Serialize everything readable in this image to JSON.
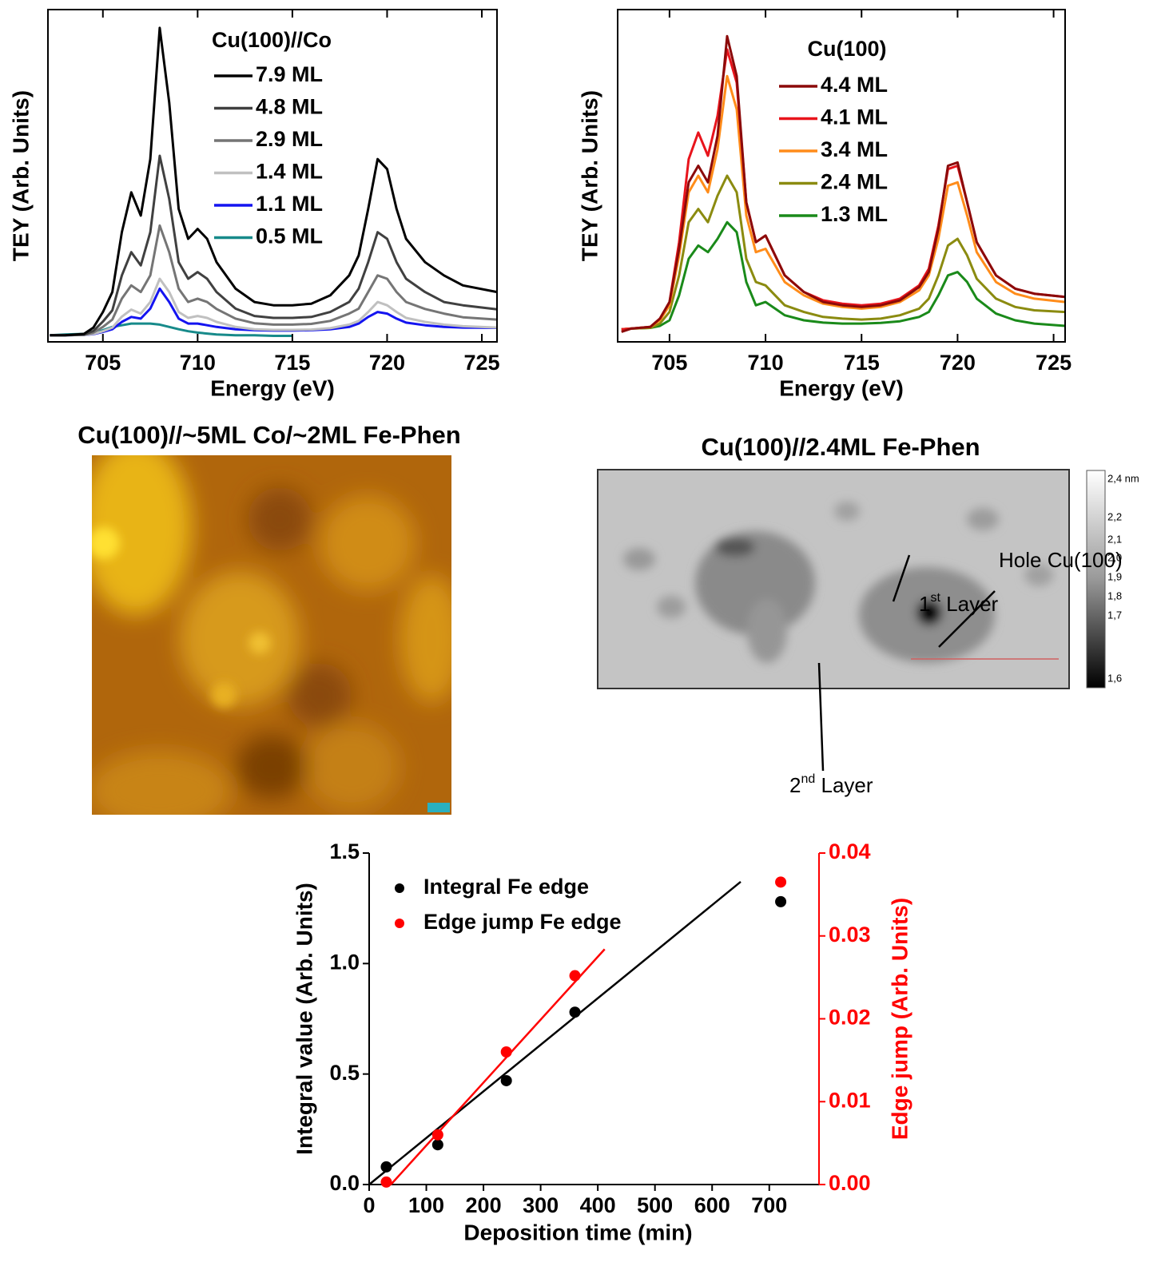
{
  "chart_data": [
    {
      "type": "line",
      "legend_title": "Cu(100)//Co",
      "xlabel": "Energy (eV)",
      "ylabel": "TEY (Arb. Units)",
      "xlim": [
        702.1,
        725.8
      ],
      "ylim": [
        0,
        1
      ],
      "xticks": [
        705,
        710,
        715,
        720,
        725
      ],
      "x": [
        702.2,
        703,
        704,
        704.5,
        705,
        705.5,
        706,
        706.5,
        707,
        707.5,
        708,
        708.5,
        709,
        709.5,
        710,
        710.5,
        711,
        712,
        713,
        714,
        715,
        716,
        717,
        718,
        718.5,
        719,
        719.5,
        720,
        720.5,
        721,
        722,
        723,
        724,
        725.8
      ],
      "series": [
        {
          "name": "7.9 ML",
          "color": "#000000",
          "values": [
            0.02,
            0.02,
            0.024,
            0.043,
            0.09,
            0.15,
            0.33,
            0.45,
            0.38,
            0.55,
            0.945,
            0.72,
            0.4,
            0.31,
            0.34,
            0.31,
            0.24,
            0.16,
            0.12,
            0.11,
            0.11,
            0.115,
            0.14,
            0.2,
            0.26,
            0.4,
            0.55,
            0.52,
            0.4,
            0.31,
            0.24,
            0.2,
            0.17,
            0.15
          ]
        },
        {
          "name": "4.8 ML",
          "color": "#404040",
          "values": [
            0.02,
            0.02,
            0.022,
            0.033,
            0.061,
            0.095,
            0.2,
            0.27,
            0.23,
            0.33,
            0.56,
            0.43,
            0.24,
            0.19,
            0.21,
            0.19,
            0.15,
            0.1,
            0.078,
            0.072,
            0.072,
            0.075,
            0.09,
            0.12,
            0.16,
            0.24,
            0.33,
            0.31,
            0.24,
            0.19,
            0.15,
            0.12,
            0.11,
            0.098
          ]
        },
        {
          "name": "2.9 ML",
          "color": "#757575",
          "values": [
            0.02,
            0.02,
            0.021,
            0.028,
            0.045,
            0.067,
            0.13,
            0.17,
            0.15,
            0.2,
            0.35,
            0.27,
            0.16,
            0.12,
            0.13,
            0.12,
            0.099,
            0.07,
            0.056,
            0.052,
            0.052,
            0.054,
            0.063,
            0.085,
            0.1,
            0.15,
            0.2,
            0.19,
            0.15,
            0.12,
            0.099,
            0.085,
            0.074,
            0.067
          ]
        },
        {
          "name": "1.4 ML",
          "color": "#c0c0c0",
          "values": [
            0.02,
            0.02,
            0.021,
            0.024,
            0.032,
            0.043,
            0.076,
            0.097,
            0.085,
            0.12,
            0.19,
            0.15,
            0.09,
            0.072,
            0.078,
            0.072,
            0.06,
            0.045,
            0.038,
            0.036,
            0.036,
            0.037,
            0.041,
            0.052,
            0.063,
            0.09,
            0.12,
            0.11,
            0.09,
            0.072,
            0.06,
            0.052,
            0.047,
            0.043
          ]
        },
        {
          "name": "1.1 ML",
          "color": "#1414f0",
          "values": [
            0.02,
            0.02,
            0.021,
            0.023,
            0.03,
            0.038,
            0.06,
            0.075,
            0.07,
            0.1,
            0.16,
            0.12,
            0.07,
            0.055,
            0.055,
            0.05,
            0.045,
            0.038,
            0.035,
            0.034,
            0.034,
            0.035,
            0.038,
            0.045,
            0.055,
            0.075,
            0.09,
            0.085,
            0.07,
            0.058,
            0.05,
            0.045,
            0.043,
            0.042
          ]
        },
        {
          "name": "0.5 ML",
          "color": "#178a8a",
          "values": [
            0.02,
            0.022,
            0.024,
            0.026,
            0.035,
            0.045,
            0.05,
            0.055,
            0.055,
            0.055,
            0.052,
            0.045,
            0.038,
            0.032,
            0.028,
            0.025,
            0.022,
            0.02,
            0.02,
            0.018,
            0.018,
            null,
            null,
            null,
            null,
            null,
            null,
            null,
            null,
            null,
            null,
            null,
            null,
            null
          ]
        }
      ]
    },
    {
      "type": "line",
      "legend_title": "Cu(100)",
      "xlabel": "Energy (eV)",
      "ylabel": "TEY (Arb. Units)",
      "xlim": [
        702.3,
        725.6
      ],
      "ylim": [
        0,
        1
      ],
      "xticks": [
        705,
        710,
        715,
        720,
        725
      ],
      "x": [
        702.5,
        703,
        704,
        704.5,
        705,
        705.5,
        706,
        706.5,
        707,
        707.5,
        708,
        708.5,
        709,
        709.5,
        710,
        710.5,
        711,
        712,
        713,
        714,
        715,
        716,
        717,
        718,
        718.5,
        719,
        719.5,
        720,
        720.5,
        721,
        722,
        723,
        724,
        725.6
      ],
      "series": [
        {
          "name": "4.4 ML",
          "color": "#8b0a0a",
          "values": [
            0.03,
            0.04,
            0.045,
            0.07,
            0.12,
            0.28,
            0.48,
            0.53,
            0.48,
            0.62,
            0.92,
            0.8,
            0.42,
            0.3,
            0.32,
            0.26,
            0.2,
            0.15,
            0.12,
            0.11,
            0.105,
            0.11,
            0.125,
            0.165,
            0.21,
            0.34,
            0.53,
            0.54,
            0.42,
            0.3,
            0.2,
            0.16,
            0.145,
            0.135
          ]
        },
        {
          "name": "4.1 ML",
          "color": "#e8141c",
          "values": [
            0.038,
            0.04,
            0.045,
            0.07,
            0.12,
            0.3,
            0.55,
            0.63,
            0.56,
            0.68,
            0.88,
            0.78,
            0.42,
            0.3,
            0.32,
            0.26,
            0.2,
            0.15,
            0.125,
            0.115,
            0.11,
            0.115,
            0.13,
            0.17,
            0.22,
            0.35,
            0.52,
            0.53,
            0.42,
            0.3,
            0.2,
            0.16,
            0.145,
            0.135
          ]
        },
        {
          "name": "3.4 ML",
          "color": "#ff8c1a",
          "values": [
            0.038,
            0.04,
            0.045,
            0.065,
            0.11,
            0.26,
            0.45,
            0.5,
            0.45,
            0.58,
            0.8,
            0.7,
            0.38,
            0.27,
            0.28,
            0.23,
            0.18,
            0.14,
            0.115,
            0.105,
            0.1,
            0.105,
            0.12,
            0.155,
            0.2,
            0.31,
            0.47,
            0.48,
            0.38,
            0.27,
            0.18,
            0.145,
            0.13,
            0.12
          ]
        },
        {
          "name": "2.4 ML",
          "color": "#8b8b10",
          "values": [
            0.038,
            0.04,
            0.042,
            0.055,
            0.09,
            0.2,
            0.36,
            0.4,
            0.36,
            0.44,
            0.5,
            0.45,
            0.25,
            0.18,
            0.17,
            0.14,
            0.11,
            0.09,
            0.075,
            0.07,
            0.067,
            0.07,
            0.08,
            0.1,
            0.13,
            0.2,
            0.29,
            0.31,
            0.26,
            0.19,
            0.13,
            0.105,
            0.095,
            0.09
          ]
        },
        {
          "name": "1.3 ML",
          "color": "#1a8a1a",
          "values": [
            0.038,
            0.04,
            0.042,
            0.048,
            0.065,
            0.14,
            0.25,
            0.29,
            0.27,
            0.31,
            0.36,
            0.33,
            0.18,
            0.11,
            0.12,
            0.1,
            0.08,
            0.065,
            0.058,
            0.055,
            0.055,
            0.057,
            0.062,
            0.075,
            0.09,
            0.14,
            0.2,
            0.21,
            0.18,
            0.13,
            0.085,
            0.065,
            0.055,
            0.048
          ]
        }
      ]
    },
    {
      "type": "scatter",
      "xlabel": "Deposition time (min)",
      "ylabel": "Integral value (Arb. Units)",
      "y2label": "Edge jump (Arb. Units)",
      "xlim": [
        0,
        787
      ],
      "ylim": [
        0,
        1.5
      ],
      "y2lim": [
        0,
        0.04
      ],
      "y2_color": "#ff0000",
      "xticks": [
        0,
        100,
        200,
        300,
        400,
        500,
        600,
        700
      ],
      "yticks": [
        {
          "value": 0,
          "label": "0.0"
        },
        {
          "value": 0.5,
          "label": "0.5"
        },
        {
          "value": 1,
          "label": "1.0"
        },
        {
          "value": 1.5,
          "label": "1.5"
        }
      ],
      "y2ticks": [
        {
          "value": 0,
          "label": "0.00"
        },
        {
          "value": 0.01,
          "label": "0.01"
        },
        {
          "value": 0.02,
          "label": "0.02"
        },
        {
          "value": 0.03,
          "label": "0.03"
        },
        {
          "value": 0.04,
          "label": "0.04"
        }
      ],
      "series": [
        {
          "name": "Integral Fe edge",
          "color": "#000000",
          "x": [
            30,
            120,
            240,
            360,
            720
          ],
          "values": [
            0.08,
            0.18,
            0.47,
            0.78,
            1.28
          ]
        },
        {
          "name": "Edge jump Fe edge",
          "color": "#ff0000",
          "axis": "y2",
          "x": [
            30,
            120,
            240,
            360,
            720
          ],
          "values": [
            0.0003,
            0.006,
            0.016,
            0.0252,
            0.0365
          ]
        }
      ],
      "fits": [
        {
          "color": "#000000",
          "x": [
            0,
            650
          ],
          "values": [
            0,
            1.37
          ]
        },
        {
          "color": "#ff0000",
          "axis": "y2",
          "x": [
            38,
            412
          ],
          "values": [
            0,
            0.0284
          ]
        }
      ]
    }
  ],
  "images": [
    {
      "title": "Cu(100)//~5ML Co/~2ML Fe-Phen"
    },
    {
      "title": "Cu(100)//2.4ML Fe-Phen",
      "colorbar_labels": [
        "2,4 nm",
        "2,2",
        "2,1",
        "2,0",
        "1,9",
        "1,8",
        "1,7",
        "1,6"
      ],
      "annotations": [
        {
          "text": "Hole Cu(100)"
        },
        {
          "base": "1",
          "sup": "st",
          "rest": " Layer"
        },
        {
          "base": "2",
          "sup": "nd",
          "rest": " Layer"
        }
      ]
    }
  ]
}
